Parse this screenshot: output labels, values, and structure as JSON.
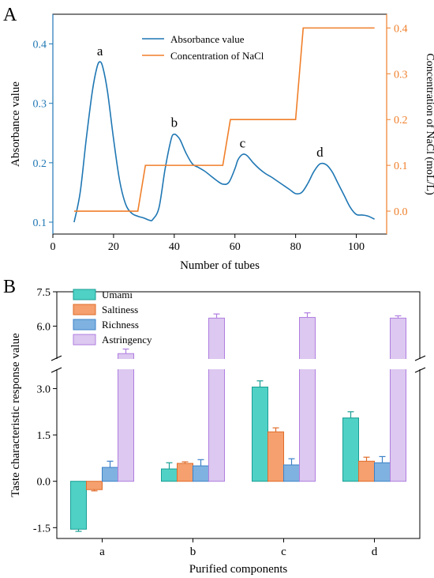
{
  "colors": {
    "absorbance": "#1f77b4",
    "nacl": "#f07f2a",
    "umami_fill": "#4fd1c5",
    "umami_stroke": "#1a9e95",
    "saltiness_fill": "#f5a06e",
    "saltiness_stroke": "#e06c2a",
    "richness_fill": "#7fb2e0",
    "richness_stroke": "#3c82c8",
    "astringency_fill": "#dcc8f0",
    "astringency_stroke": "#b07ee0"
  },
  "chart_data": [
    {
      "type": "line",
      "panel_label": "A",
      "xlabel": "Number of tubes",
      "ylabel": "Absorbance value",
      "y2label": "Concentration of NaCl (moL/L)",
      "xlim": [
        0,
        110
      ],
      "ylim": [
        0.08,
        0.45
      ],
      "y2lim": [
        -0.05,
        0.43
      ],
      "xticks": [
        "0",
        "20",
        "40",
        "60",
        "80",
        "100"
      ],
      "yticks": [
        "0.1",
        "0.2",
        "0.3",
        "0.4"
      ],
      "y2ticks": [
        "0.0",
        "0.1",
        "0.2",
        "0.3",
        "0.4"
      ],
      "legend": [
        "Absorbance value",
        "Concentration of NaCl"
      ],
      "legend_position": "top-center",
      "peak_labels": [
        {
          "label": "a",
          "x": 15.5,
          "y": 0.37
        },
        {
          "label": "b",
          "x": 40,
          "y": 0.25
        },
        {
          "label": "c",
          "x": 62.5,
          "y": 0.215
        },
        {
          "label": "d",
          "x": 88,
          "y": 0.2
        }
      ],
      "series": [
        {
          "name": "Absorbance value",
          "axis": "left",
          "x": [
            7,
            9,
            11,
            13,
            14.5,
            15.5,
            16.5,
            18,
            20,
            22,
            24,
            26,
            28,
            30,
            32,
            33,
            35,
            37,
            39,
            40,
            41,
            42,
            44,
            46,
            48,
            50,
            52,
            54,
            56,
            58,
            60,
            61,
            62.5,
            64,
            66,
            68,
            70,
            72,
            74,
            76,
            78,
            80,
            82,
            84,
            86,
            88,
            90,
            92,
            94,
            96,
            98,
            100,
            102,
            104,
            106
          ],
          "y": [
            0.1,
            0.15,
            0.24,
            0.32,
            0.36,
            0.37,
            0.36,
            0.32,
            0.24,
            0.17,
            0.13,
            0.115,
            0.11,
            0.107,
            0.103,
            0.105,
            0.125,
            0.19,
            0.24,
            0.248,
            0.245,
            0.238,
            0.215,
            0.198,
            0.192,
            0.186,
            0.178,
            0.17,
            0.164,
            0.167,
            0.19,
            0.205,
            0.214,
            0.212,
            0.2,
            0.19,
            0.182,
            0.176,
            0.169,
            0.162,
            0.155,
            0.148,
            0.15,
            0.165,
            0.185,
            0.198,
            0.197,
            0.185,
            0.165,
            0.145,
            0.125,
            0.113,
            0.112,
            0.11,
            0.105
          ]
        },
        {
          "name": "Concentration of NaCl",
          "axis": "right",
          "x": [
            7,
            28,
            30.5,
            56,
            58.5,
            80,
            82.5,
            106
          ],
          "y": [
            0,
            0,
            0.1,
            0.1,
            0.2,
            0.2,
            0.4,
            0.4
          ]
        }
      ]
    },
    {
      "type": "bar",
      "panel_label": "B",
      "xlabel": "Purified components",
      "ylabel": "Taste characteristic response value",
      "categories": [
        "a",
        "b",
        "c",
        "d"
      ],
      "yticks_lower": [
        "-1.5",
        "0.0",
        "1.5",
        "3.0"
      ],
      "yticks_upper": [
        "6.0",
        "7.5"
      ],
      "axis_break": [
        3.6,
        4.6
      ],
      "legend_position": "top-left",
      "series": [
        {
          "name": "Umami",
          "values": [
            -1.55,
            0.4,
            3.05,
            2.05
          ],
          "errors": [
            0.07,
            0.2,
            0.2,
            0.2
          ]
        },
        {
          "name": "Saltiness",
          "values": [
            -0.27,
            0.58,
            1.6,
            0.65
          ],
          "errors": [
            0.04,
            0.05,
            0.13,
            0.13
          ]
        },
        {
          "name": "Richness",
          "values": [
            0.45,
            0.5,
            0.53,
            0.6
          ],
          "errors": [
            0.2,
            0.2,
            0.2,
            0.2
          ]
        },
        {
          "name": "Astringency",
          "values": [
            4.8,
            6.35,
            6.38,
            6.35
          ],
          "errors": [
            0.2,
            0.18,
            0.2,
            0.1
          ]
        }
      ]
    }
  ]
}
